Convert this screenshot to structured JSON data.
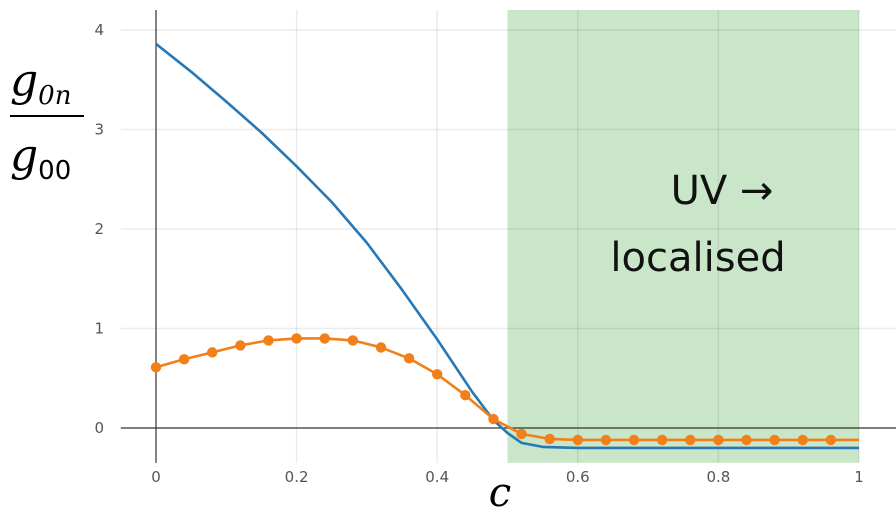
{
  "chart_data": {
    "type": "line",
    "title": "",
    "xlabel": "c",
    "ylabel": {
      "numerator": {
        "base": "g",
        "sub": "0n"
      },
      "denominator": {
        "base": "g",
        "sub": "00"
      }
    },
    "xlim": [
      -0.05,
      1.05
    ],
    "ylim": [
      -0.35,
      4.15
    ],
    "xticks": [
      0,
      0.2,
      0.4,
      0.6,
      0.8,
      1
    ],
    "xtick_labels": [
      "0",
      "0.2",
      "0.4",
      "0.6",
      "0.8",
      "1"
    ],
    "yticks": [
      0,
      1,
      2,
      3,
      4
    ],
    "ytick_labels": [
      "0",
      "1",
      "2",
      "3",
      "4"
    ],
    "grid": true,
    "legend": "none",
    "shaded_region": {
      "x": [
        0.5,
        1.0
      ],
      "color": "#c9e6c8",
      "label": [
        "UV →",
        "localised"
      ]
    },
    "series": [
      {
        "color": "#2878b5",
        "markers": false,
        "x": [
          0,
          0.05,
          0.1,
          0.15,
          0.2,
          0.25,
          0.3,
          0.35,
          0.4,
          0.45,
          0.48,
          0.5,
          0.52,
          0.55,
          0.6,
          0.7,
          0.8,
          0.9,
          1.0
        ],
        "y": [
          3.86,
          3.58,
          3.28,
          2.97,
          2.63,
          2.27,
          1.86,
          1.39,
          0.89,
          0.36,
          0.08,
          -0.05,
          -0.15,
          -0.19,
          -0.2,
          -0.2,
          -0.2,
          -0.2,
          -0.2
        ]
      },
      {
        "color": "#f17f1a",
        "markers": true,
        "x": [
          0,
          0.04,
          0.08,
          0.12,
          0.16,
          0.2,
          0.24,
          0.28,
          0.32,
          0.36,
          0.4,
          0.44,
          0.48,
          0.52,
          0.56,
          0.6,
          0.64,
          0.68,
          0.72,
          0.76,
          0.8,
          0.84,
          0.88,
          0.92,
          0.96
        ],
        "y": [
          0.61,
          0.69,
          0.76,
          0.83,
          0.88,
          0.9,
          0.9,
          0.88,
          0.81,
          0.7,
          0.54,
          0.33,
          0.09,
          -0.06,
          -0.11,
          -0.12,
          -0.12,
          -0.12,
          -0.12,
          -0.12,
          -0.12,
          -0.12,
          -0.12,
          -0.12,
          -0.12
        ]
      }
    ]
  }
}
